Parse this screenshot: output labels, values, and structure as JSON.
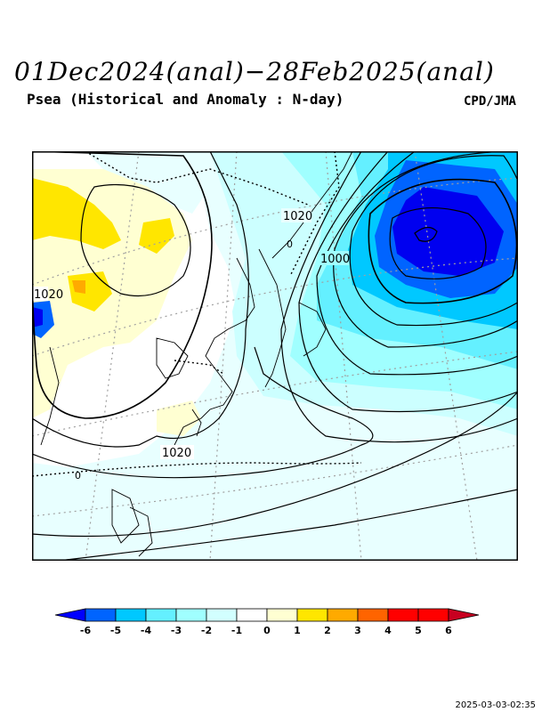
{
  "title": "01Dec2024(anal)−28Feb2025(anal)",
  "subtitle": "Psea (Historical and Anomaly : N-day)",
  "source": "CPD/JMA",
  "timestamp": "2025-03-03-02:35",
  "contour_labels": [
    "1020",
    "1000",
    "1020",
    "1020",
    "0",
    "0"
  ],
  "colorbar": {
    "ticks": [
      "-6",
      "-5",
      "-4",
      "-3",
      "-2",
      "-1",
      "0",
      "1",
      "2",
      "3",
      "4",
      "5",
      "6"
    ],
    "colors": [
      "#0000ff",
      "#0064ff",
      "#00c8ff",
      "#64f0ff",
      "#a0ffff",
      "#d2ffff",
      "#ffffff",
      "#ffffd2",
      "#ffe600",
      "#ffaa00",
      "#ff6400",
      "#ff0000",
      "#c80020"
    ]
  },
  "colors": {
    "land_line": "#000000",
    "grid": "#a0a0a0"
  }
}
